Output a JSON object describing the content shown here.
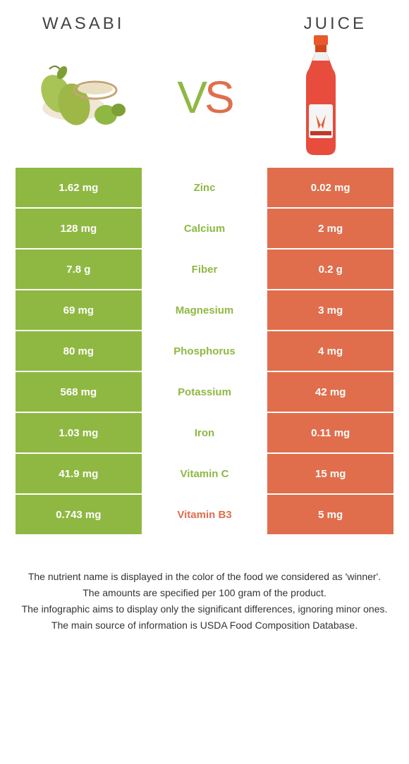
{
  "titles": {
    "left": "Wasabi",
    "right": "Juice"
  },
  "vs": {
    "v": "V",
    "s": "S"
  },
  "colors": {
    "left": "#8fb843",
    "right": "#e06e4c",
    "nut_left_win": "#8fb843",
    "nut_right_win": "#e06e4c"
  },
  "rows": [
    {
      "left": "1.62 mg",
      "name": "Zinc",
      "right": "0.02 mg",
      "winner": "left"
    },
    {
      "left": "128 mg",
      "name": "Calcium",
      "right": "2 mg",
      "winner": "left"
    },
    {
      "left": "7.8 g",
      "name": "Fiber",
      "right": "0.2 g",
      "winner": "left"
    },
    {
      "left": "69 mg",
      "name": "Magnesium",
      "right": "3 mg",
      "winner": "left"
    },
    {
      "left": "80 mg",
      "name": "Phosphorus",
      "right": "4 mg",
      "winner": "left"
    },
    {
      "left": "568 mg",
      "name": "Potassium",
      "right": "42 mg",
      "winner": "left"
    },
    {
      "left": "1.03 mg",
      "name": "Iron",
      "right": "0.11 mg",
      "winner": "left"
    },
    {
      "left": "41.9 mg",
      "name": "Vitamin C",
      "right": "15 mg",
      "winner": "left"
    },
    {
      "left": "0.743 mg",
      "name": "Vitamin B3",
      "right": "5 mg",
      "winner": "right"
    }
  ],
  "footer": [
    "The nutrient name is displayed in the color of the food we considered as 'winner'.",
    "The amounts are specified per 100 gram of the product.",
    "The infographic aims to display only the significant differences, ignoring minor ones.",
    "The main source of information is USDA Food Composition Database."
  ]
}
